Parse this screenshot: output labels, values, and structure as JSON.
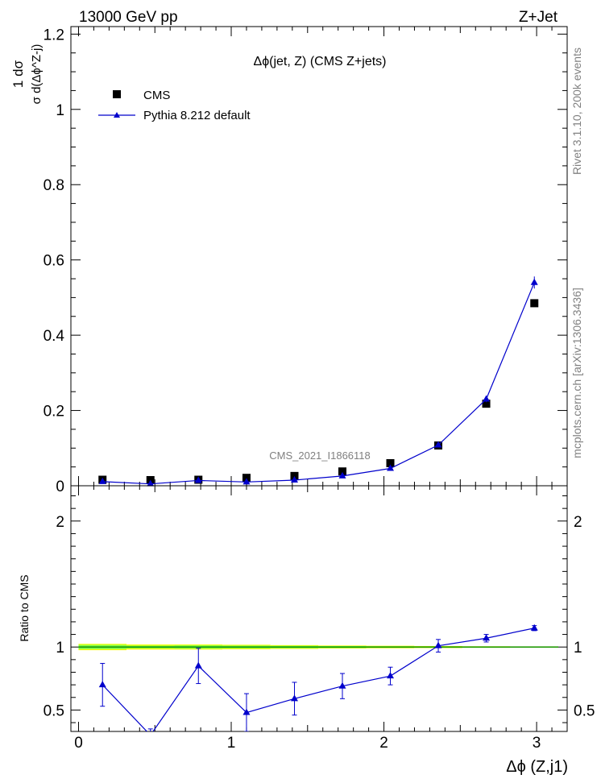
{
  "header": {
    "left": "13000 GeV pp",
    "right": "Z+Jet"
  },
  "side": {
    "rivet": "Rivet 3.1.10,  200k events",
    "mcplots": "mcplots.cern.ch [arXiv:1306.3436]"
  },
  "colors": {
    "cms": "#000000",
    "pythia": "#0000cc",
    "band_outer": "#ffff00",
    "band_inner": "#88ff44",
    "ref_line": "#008800"
  },
  "chart_data": [
    {
      "type": "scatter",
      "title": "Δϕ(jet, Z) (CMS Z+jets)",
      "ylabel": "1/σ dσ/d(Δϕ^{Z-j})",
      "watermark": "CMS_2021_I1866118",
      "legend_position": "top-left",
      "xlim": [
        -0.05,
        3.2
      ],
      "ylim": [
        0,
        1.22
      ],
      "yticks": [
        "0",
        "0.2",
        "0.4",
        "0.6",
        "0.8",
        "1",
        "1.2"
      ],
      "x": [
        0.157,
        0.471,
        0.785,
        1.1,
        1.414,
        1.728,
        2.042,
        2.356,
        2.67,
        2.985
      ],
      "series": [
        {
          "name": "CMS",
          "marker": "square",
          "values": [
            0.016,
            0.015,
            0.016,
            0.021,
            0.026,
            0.038,
            0.06,
            0.107,
            0.218,
            0.485
          ]
        },
        {
          "name": "Pythia 8.212 default",
          "marker": "triangle",
          "values": [
            0.011,
            0.005,
            0.014,
            0.01,
            0.015,
            0.026,
            0.046,
            0.108,
            0.23,
            0.54
          ],
          "errors": [
            0.002,
            0.001,
            0.002,
            0.002,
            0.002,
            0.002,
            0.003,
            0.004,
            0.008,
            0.016
          ]
        }
      ]
    },
    {
      "type": "line",
      "ylabel": "Ratio to CMS",
      "xlabel": "Δϕ (Z,j1)",
      "xlim": [
        -0.05,
        3.2
      ],
      "ylim": [
        0.33,
        2.28
      ],
      "xticks": [
        "0",
        "1",
        "2",
        "3"
      ],
      "yticks": [
        "0.5",
        "1",
        "2"
      ],
      "x": [
        0.157,
        0.471,
        0.785,
        1.1,
        1.414,
        1.728,
        2.042,
        2.356,
        2.67,
        2.985
      ],
      "series": [
        {
          "name": "Pythia 8.212 default",
          "values": [
            0.7,
            0.3,
            0.85,
            0.48,
            0.59,
            0.69,
            0.77,
            1.01,
            1.07,
            1.15
          ],
          "errors": [
            0.17,
            0.05,
            0.14,
            0.15,
            0.13,
            0.1,
            0.07,
            0.05,
            0.03,
            0.02
          ]
        }
      ]
    }
  ]
}
